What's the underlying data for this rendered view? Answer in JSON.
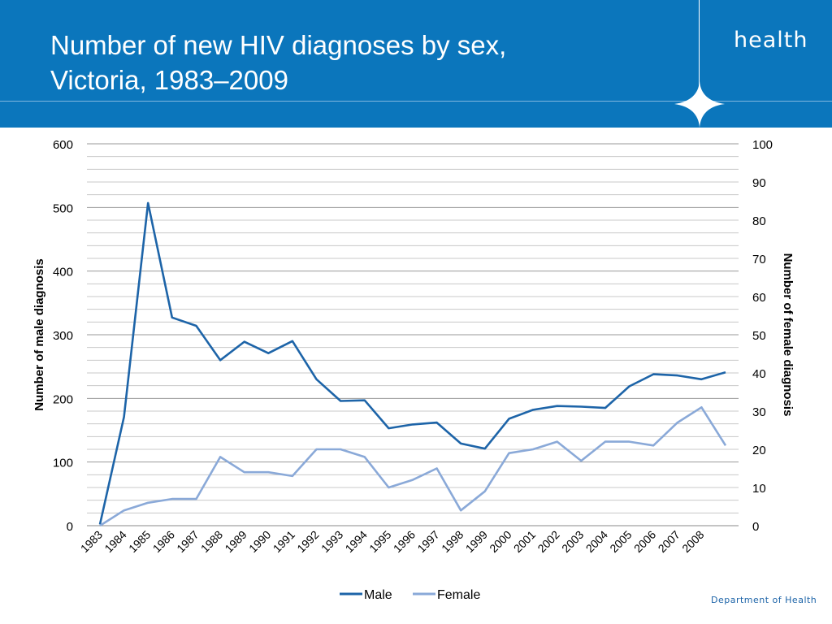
{
  "header": {
    "title_line1": "Number of new HIV diagnoses by sex,",
    "title_line2": "Victoria, 1983–2009",
    "brand": "health",
    "background_color": "#0b76bc"
  },
  "footer": {
    "brand": "Department of Health"
  },
  "chart_data": {
    "type": "line",
    "title": "Number of new HIV diagnoses by sex, Victoria, 1983–2009",
    "x": [
      "1983",
      "1984",
      "1985",
      "1986",
      "1987",
      "1988",
      "1989",
      "1990",
      "1991",
      "1992",
      "1993",
      "1994",
      "1995",
      "1996",
      "1997",
      "1998",
      "1999",
      "2000",
      "2001",
      "2002",
      "2003",
      "2004",
      "2005",
      "2006",
      "2007",
      "2008",
      "2009"
    ],
    "xtick_labels": [
      "1983",
      "1984",
      "1985",
      "1986",
      "1987",
      "1988",
      "1989",
      "1990",
      "1991",
      "1992",
      "1993",
      "1994",
      "1995",
      "1996",
      "1997",
      "1998",
      "1999",
      "2000",
      "2001",
      "2002",
      "2003",
      "2004",
      "2005",
      "2006",
      "2007",
      "2008"
    ],
    "ylabel": "Number of male diagnosis",
    "y2label": "Number of female diagnosis",
    "ylim": [
      0,
      600
    ],
    "y2lim": [
      0,
      100
    ],
    "yticks": [
      0,
      100,
      200,
      300,
      400,
      500,
      600
    ],
    "y2ticks": [
      0,
      10,
      20,
      30,
      40,
      50,
      60,
      70,
      80,
      90,
      100
    ],
    "grid": true,
    "legend_position": "bottom",
    "series": [
      {
        "name": "Male",
        "axis": "left",
        "color": "#1d64a8",
        "values": [
          2,
          171,
          507,
          327,
          314,
          260,
          289,
          271,
          290,
          230,
          196,
          197,
          153,
          159,
          162,
          129,
          121,
          168,
          182,
          188,
          187,
          185,
          219,
          238,
          236,
          230,
          241
        ]
      },
      {
        "name": "Female",
        "axis": "right",
        "color": "#8aa9d8",
        "values": [
          0,
          4,
          6,
          7,
          7,
          18,
          14,
          14,
          13,
          20,
          20,
          18,
          10,
          12,
          15,
          4,
          9,
          19,
          20,
          22,
          17,
          22,
          22,
          21,
          27,
          31,
          21
        ]
      }
    ]
  }
}
